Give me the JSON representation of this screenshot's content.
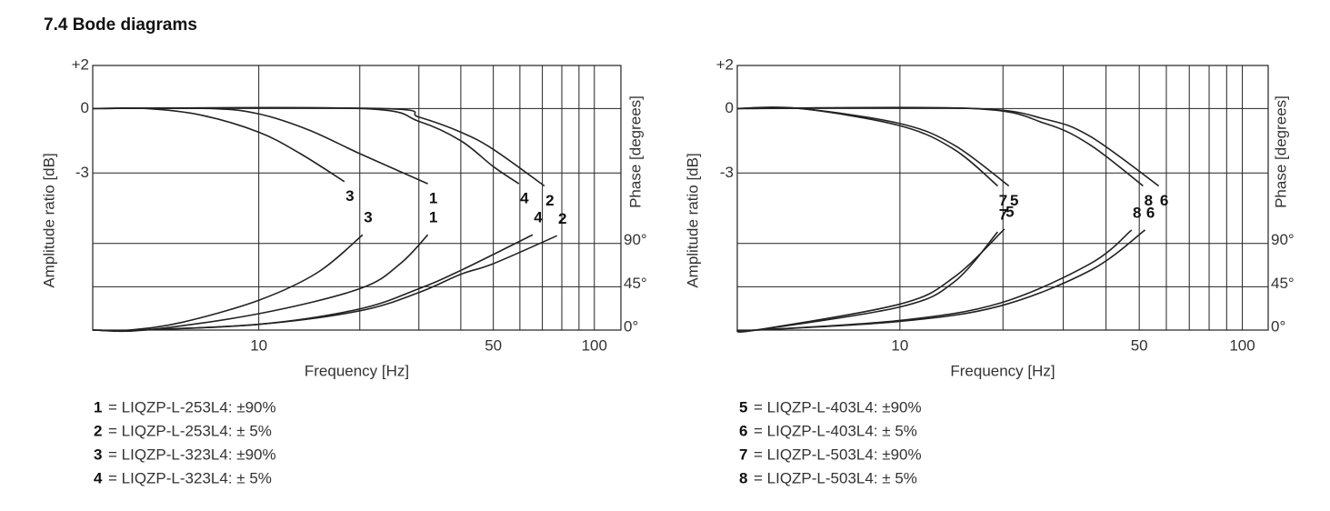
{
  "title": "7.4 Bode diagrams",
  "chart_data": [
    {
      "type": "line",
      "x_label": "Frequency [Hz]",
      "y_label": "Amplitude ratio [dB]",
      "y2_label": "Phase [degrees]",
      "xscale": "log",
      "xlim": [
        3.2,
        120
      ],
      "xticks": [
        10,
        50,
        100
      ],
      "xminor": [
        20,
        30,
        40,
        60,
        70,
        80,
        90
      ],
      "ylim": [
        -10.3,
        2
      ],
      "yticks": [
        {
          "value": 2,
          "label": "+2"
        },
        0,
        -3
      ],
      "y2lim": [
        0,
        275
      ],
      "y2ticks": [
        {
          "value": 0,
          "label": "0°"
        },
        {
          "value": 45,
          "label": "45°"
        },
        {
          "value": 90,
          "label": "90°"
        }
      ],
      "grid": true,
      "color": "#222222",
      "series": [
        {
          "name": "3",
          "x": [
            3.2,
            4.6,
            6.7,
            10,
            13.3,
            18
          ],
          "values": [
            0,
            0,
            -0.3,
            -1.1,
            -2.1,
            -3.4
          ]
        },
        {
          "name": "1",
          "x": [
            3.2,
            7.1,
            10,
            14.1,
            20,
            31.9
          ],
          "values": [
            0,
            0,
            -0.25,
            -1.0,
            -2.1,
            -3.5
          ]
        },
        {
          "name": "4",
          "x": [
            3.2,
            20,
            30,
            40,
            50,
            59.6
          ],
          "values": [
            0,
            0,
            -0.6,
            -1.5,
            -2.7,
            -3.5
          ]
        },
        {
          "name": "2",
          "x": [
            3.2,
            23,
            30,
            40,
            50,
            71
          ],
          "values": [
            0,
            0,
            -0.4,
            -1.1,
            -1.9,
            -3.6
          ]
        },
        {
          "name": "3",
          "axis": "y2",
          "x": [
            3.2,
            4.1,
            5.9,
            10,
            15,
            20.4
          ],
          "values": [
            0,
            0,
            8,
            31,
            60,
            99
          ]
        },
        {
          "name": "1",
          "axis": "y2",
          "x": [
            3.2,
            4.6,
            10,
            20,
            26.4,
            31.9
          ],
          "values": [
            0,
            0,
            17,
            43,
            69,
            99
          ]
        },
        {
          "name": "4",
          "axis": "y2",
          "x": [
            3.2,
            4.3,
            10,
            20,
            30,
            40,
            65.5
          ],
          "values": [
            0,
            0,
            6,
            22,
            43,
            62,
            99
          ]
        },
        {
          "name": "2",
          "axis": "y2",
          "x": [
            3.2,
            4.3,
            10,
            20,
            30,
            40,
            50,
            77.4
          ],
          "values": [
            0,
            0,
            6,
            20,
            39,
            58,
            69,
            98
          ]
        }
      ],
      "legend": [
        {
          "key": "1",
          "text": "= LIQZP-L-253L4: ±90%"
        },
        {
          "key": "2",
          "text": "= LIQZP-L-253L4: ± 5%"
        },
        {
          "key": "3",
          "text": "= LIQZP-L-323L4: ±90%"
        },
        {
          "key": "4",
          "text": "= LIQZP-L-323L4: ± 5%"
        }
      ]
    },
    {
      "type": "line",
      "x_label": "Frequency [Hz]",
      "y_label": "Amplitude ratio [dB]",
      "y2_label": "Phase [degrees]",
      "xscale": "log",
      "xlim": [
        3.35,
        119
      ],
      "xticks": [
        10,
        50,
        100
      ],
      "xminor": [
        20,
        30,
        40,
        60,
        70,
        80,
        90
      ],
      "ylim": [
        -10.3,
        2
      ],
      "yticks": [
        {
          "value": 2,
          "label": "+2"
        },
        0,
        -3
      ],
      "y2lim": [
        0,
        275
      ],
      "y2ticks": [
        {
          "value": 0,
          "label": "0°"
        },
        {
          "value": 45,
          "label": "45°"
        },
        {
          "value": 90,
          "label": "90°"
        }
      ],
      "grid": true,
      "color": "#222222",
      "series": [
        {
          "name": "7",
          "x": [
            3.35,
            5.1,
            10,
            14.4,
            19.3
          ],
          "values": [
            0,
            0,
            -0.8,
            -1.9,
            -3.6
          ]
        },
        {
          "name": "5",
          "x": [
            3.35,
            5.1,
            10,
            14.4,
            20.8
          ],
          "values": [
            0,
            0,
            -0.7,
            -1.7,
            -3.6
          ]
        },
        {
          "name": "8",
          "x": [
            3.35,
            16.3,
            26.6,
            36.0,
            51.3
          ],
          "values": [
            0,
            0,
            -0.7,
            -1.7,
            -3.6
          ]
        },
        {
          "name": "6",
          "x": [
            3.35,
            16.3,
            26.6,
            36.0,
            57.0
          ],
          "values": [
            0,
            0,
            -0.5,
            -1.3,
            -3.6
          ]
        },
        {
          "name": "7",
          "axis": "y2",
          "x": [
            3.35,
            3.8,
            10,
            14.4,
            19.3
          ],
          "values": [
            0,
            0,
            24,
            50,
            102
          ]
        },
        {
          "name": "5",
          "axis": "y2",
          "x": [
            3.35,
            3.8,
            10,
            14.4,
            20.2
          ],
          "values": [
            0,
            0,
            27,
            55,
            105
          ]
        },
        {
          "name": "8",
          "axis": "y2",
          "x": [
            3.35,
            3.8,
            10,
            19.6,
            36.0,
            47.5
          ],
          "values": [
            0,
            0,
            10,
            28,
            69,
            104
          ]
        },
        {
          "name": "6",
          "axis": "y2",
          "x": [
            3.35,
            3.8,
            10,
            19.6,
            36.0,
            52.0
          ],
          "values": [
            0,
            0,
            9,
            25,
            62,
            104
          ]
        }
      ],
      "legend": [
        {
          "key": "5",
          "text": "= LIQZP-L-403L4: ±90%"
        },
        {
          "key": "6",
          "text": "= LIQZP-L-403L4: ± 5%"
        },
        {
          "key": "7",
          "text": "= LIQZP-L-503L4: ±90%"
        },
        {
          "key": "8",
          "text": "= LIQZP-L-503L4: ± 5%"
        }
      ]
    }
  ]
}
